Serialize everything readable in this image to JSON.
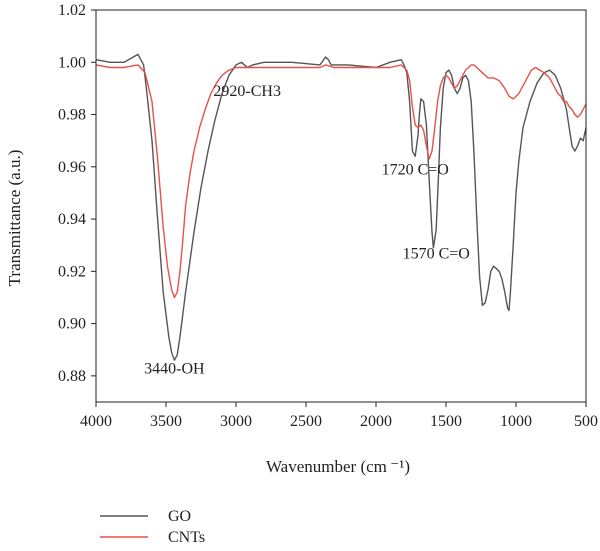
{
  "chart_data": {
    "type": "line",
    "xlabel": "Wavenumber (cm ⁻¹)",
    "ylabel": "Transmittance (a.u.)",
    "xlim": [
      4000,
      500
    ],
    "ylim": [
      0.87,
      1.02
    ],
    "xticks": [
      4000,
      3500,
      3000,
      2500,
      2000,
      1500,
      1000,
      500
    ],
    "yticks": [
      0.88,
      0.9,
      0.92,
      0.94,
      0.96,
      0.98,
      1.0,
      1.02
    ],
    "ytick_labels": [
      "0.88",
      "0.90",
      "0.92",
      "0.94",
      "0.96",
      "0.98",
      "1.00",
      "1.02"
    ],
    "legend_position": "bottom-left",
    "annotations": [
      {
        "text": "2920-CH3",
        "x": 2920,
        "y": 0.987
      },
      {
        "text": "1720 C=O",
        "x": 1720,
        "y": 0.957
      },
      {
        "text": "1570 C=O",
        "x": 1570,
        "y": 0.925
      },
      {
        "text": "3440-OH",
        "x": 3440,
        "y": 0.881
      }
    ],
    "series": [
      {
        "name": "GO",
        "color": "#555555",
        "x": [
          4000,
          3900,
          3800,
          3700,
          3660,
          3640,
          3600,
          3560,
          3520,
          3480,
          3460,
          3440,
          3420,
          3400,
          3360,
          3300,
          3250,
          3200,
          3150,
          3100,
          3050,
          3000,
          2960,
          2920,
          2880,
          2800,
          2600,
          2400,
          2360,
          2340,
          2320,
          2200,
          2000,
          1900,
          1820,
          1800,
          1780,
          1760,
          1740,
          1720,
          1700,
          1690,
          1680,
          1660,
          1640,
          1620,
          1600,
          1590,
          1570,
          1555,
          1540,
          1520,
          1500,
          1480,
          1460,
          1440,
          1420,
          1400,
          1380,
          1360,
          1340,
          1320,
          1300,
          1280,
          1260,
          1240,
          1220,
          1200,
          1180,
          1160,
          1140,
          1120,
          1100,
          1080,
          1060,
          1050,
          1040,
          1020,
          1000,
          980,
          950,
          900,
          850,
          800,
          760,
          720,
          680,
          640,
          620,
          600,
          580,
          560,
          540,
          520,
          500
        ],
        "y": [
          1.001,
          1.0,
          1.0,
          1.003,
          0.999,
          0.99,
          0.97,
          0.94,
          0.912,
          0.895,
          0.889,
          0.886,
          0.888,
          0.895,
          0.912,
          0.935,
          0.952,
          0.966,
          0.978,
          0.988,
          0.995,
          0.999,
          1.0,
          0.998,
          0.999,
          1.0,
          1.0,
          0.999,
          1.002,
          1.001,
          0.999,
          0.999,
          0.998,
          1.0,
          1.001,
          0.999,
          0.996,
          0.985,
          0.966,
          0.964,
          0.972,
          0.98,
          0.986,
          0.985,
          0.976,
          0.955,
          0.935,
          0.929,
          0.936,
          0.955,
          0.975,
          0.99,
          0.996,
          0.997,
          0.995,
          0.99,
          0.988,
          0.99,
          0.994,
          0.995,
          0.993,
          0.985,
          0.965,
          0.94,
          0.918,
          0.907,
          0.908,
          0.913,
          0.92,
          0.922,
          0.921,
          0.92,
          0.917,
          0.912,
          0.906,
          0.905,
          0.912,
          0.93,
          0.95,
          0.962,
          0.975,
          0.985,
          0.992,
          0.996,
          0.997,
          0.995,
          0.99,
          0.982,
          0.975,
          0.968,
          0.966,
          0.968,
          0.971,
          0.97,
          0.975
        ]
      },
      {
        "name": "CNTs",
        "color": "#e8504b",
        "x": [
          4000,
          3900,
          3800,
          3700,
          3650,
          3600,
          3560,
          3520,
          3490,
          3460,
          3440,
          3420,
          3400,
          3380,
          3360,
          3330,
          3300,
          3260,
          3220,
          3180,
          3140,
          3100,
          3050,
          3000,
          2950,
          2900,
          2800,
          2700,
          2600,
          2500,
          2400,
          2360,
          2300,
          2200,
          2100,
          2000,
          1900,
          1820,
          1780,
          1760,
          1740,
          1720,
          1700,
          1680,
          1660,
          1640,
          1620,
          1600,
          1580,
          1560,
          1540,
          1520,
          1500,
          1480,
          1460,
          1440,
          1420,
          1400,
          1380,
          1360,
          1340,
          1320,
          1300,
          1280,
          1260,
          1240,
          1200,
          1160,
          1120,
          1080,
          1050,
          1020,
          1000,
          980,
          950,
          920,
          890,
          860,
          830,
          800,
          780,
          760,
          740,
          720,
          700,
          680,
          660,
          640,
          620,
          600,
          580,
          560,
          540,
          520,
          500
        ],
        "y": [
          0.999,
          0.998,
          0.998,
          0.999,
          0.996,
          0.985,
          0.963,
          0.937,
          0.922,
          0.913,
          0.91,
          0.912,
          0.92,
          0.932,
          0.945,
          0.957,
          0.966,
          0.975,
          0.982,
          0.988,
          0.992,
          0.995,
          0.997,
          0.998,
          0.998,
          0.998,
          0.998,
          0.998,
          0.998,
          0.998,
          0.998,
          0.999,
          0.998,
          0.998,
          0.998,
          0.998,
          0.998,
          0.999,
          0.997,
          0.993,
          0.983,
          0.976,
          0.975,
          0.976,
          0.974,
          0.968,
          0.963,
          0.966,
          0.975,
          0.985,
          0.991,
          0.994,
          0.995,
          0.994,
          0.992,
          0.99,
          0.991,
          0.993,
          0.995,
          0.997,
          0.998,
          0.999,
          0.999,
          0.998,
          0.997,
          0.996,
          0.994,
          0.994,
          0.993,
          0.99,
          0.987,
          0.986,
          0.987,
          0.988,
          0.991,
          0.994,
          0.997,
          0.998,
          0.997,
          0.996,
          0.995,
          0.994,
          0.992,
          0.99,
          0.988,
          0.987,
          0.985,
          0.985,
          0.983,
          0.982,
          0.98,
          0.979,
          0.98,
          0.982,
          0.984
        ]
      }
    ]
  }
}
